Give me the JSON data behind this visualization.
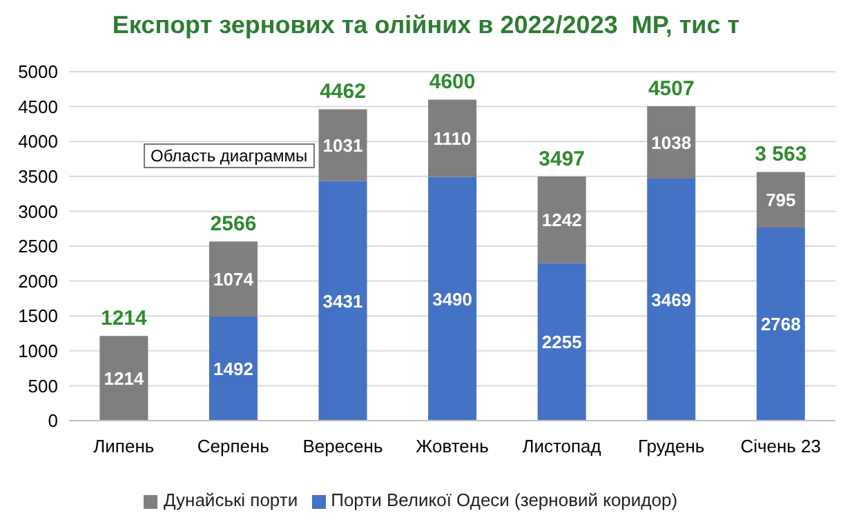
{
  "chart_data": {
    "type": "bar",
    "title": "Експорт зернових та олійних в 2022/2023  МР, тис т",
    "categories": [
      "Липень",
      "Серпень",
      "Вересень",
      "Жовтень",
      "Листопад",
      "Грудень",
      "Січень 23"
    ],
    "series": [
      {
        "name": "Порти Великої Одеси (зерновий коридор)",
        "color": "#4472c4",
        "values": [
          null,
          1492,
          3431,
          3490,
          2255,
          3469,
          2768
        ]
      },
      {
        "name": "Дунайські порти",
        "color": "#7f7f7f",
        "values": [
          1214,
          1074,
          1031,
          1110,
          1242,
          1038,
          795
        ]
      }
    ],
    "stacked": true,
    "data_labels": true,
    "totals": [
      "1214",
      "2566",
      "4462",
      "4600",
      "3497",
      "4507",
      "3 563"
    ],
    "ylim": [
      0,
      5000
    ],
    "yticks": [
      0,
      500,
      1000,
      1500,
      2000,
      2500,
      3000,
      3500,
      4000,
      4500,
      5000
    ],
    "grid": "y",
    "legend": "bottom",
    "annotations": [
      "Область диаграммы"
    ]
  }
}
